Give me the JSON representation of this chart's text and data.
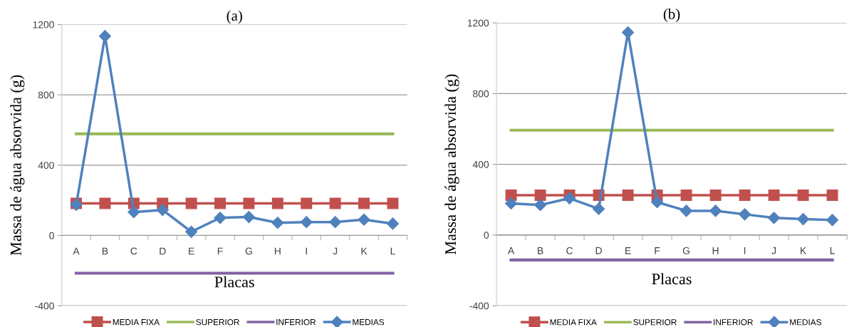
{
  "chart_data": [
    {
      "type": "line",
      "title": "(a)",
      "xlabel": "Placas",
      "ylabel": "Massa de água absorvida (g)",
      "categories": [
        "A",
        "B",
        "C",
        "D",
        "E",
        "F",
        "G",
        "H",
        "I",
        "J",
        "K",
        "L"
      ],
      "ylim": [
        -400,
        1200
      ],
      "yticks": [
        -400,
        0,
        400,
        800,
        1200
      ],
      "grid": "y",
      "legend": "bottom",
      "series": [
        {
          "name": "MEDIA FIXA",
          "color": "#c0504d",
          "marker": "square",
          "values": [
            182,
            182,
            182,
            182,
            182,
            182,
            182,
            182,
            182,
            182,
            182,
            182
          ]
        },
        {
          "name": "SUPERIOR",
          "color": "#9bbb59",
          "marker": "none",
          "values": [
            578,
            578,
            578,
            578,
            578,
            578,
            578,
            578,
            578,
            578,
            578,
            578
          ]
        },
        {
          "name": "INFERIOR",
          "color": "#8064a2",
          "marker": "none",
          "values": [
            -215,
            -215,
            -215,
            -215,
            -215,
            -215,
            -215,
            -215,
            -215,
            -215,
            -215,
            -215
          ]
        },
        {
          "name": "MEDIAS",
          "color": "#4f81bd",
          "marker": "diamond",
          "values": [
            175,
            1134,
            133,
            145,
            21,
            100,
            105,
            72,
            76,
            76,
            90,
            67
          ]
        }
      ]
    },
    {
      "type": "line",
      "title": "(b)",
      "xlabel": "Placas",
      "ylabel": "Massa de água absorvida (g)",
      "categories": [
        "A",
        "B",
        "C",
        "D",
        "E",
        "F",
        "G",
        "H",
        "I",
        "J",
        "K",
        "L"
      ],
      "ylim": [
        -400,
        1200
      ],
      "yticks": [
        -400,
        0,
        400,
        800,
        1200
      ],
      "grid": "y",
      "legend": "bottom",
      "series": [
        {
          "name": "MEDIA FIXA",
          "color": "#c0504d",
          "marker": "square",
          "values": [
            225,
            225,
            225,
            225,
            225,
            225,
            225,
            225,
            225,
            225,
            225,
            225
          ]
        },
        {
          "name": "SUPERIOR",
          "color": "#9bbb59",
          "marker": "none",
          "values": [
            593,
            593,
            593,
            593,
            593,
            593,
            593,
            593,
            593,
            593,
            593,
            593
          ]
        },
        {
          "name": "INFERIOR",
          "color": "#8064a2",
          "marker": "none",
          "values": [
            -141,
            -141,
            -141,
            -141,
            -141,
            -141,
            -141,
            -141,
            -141,
            -141,
            -141,
            -141
          ]
        },
        {
          "name": "MEDIAS",
          "color": "#4f81bd",
          "marker": "diamond",
          "values": [
            179,
            170,
            208,
            148,
            1146,
            186,
            137,
            137,
            117,
            97,
            90,
            85
          ]
        }
      ]
    }
  ]
}
